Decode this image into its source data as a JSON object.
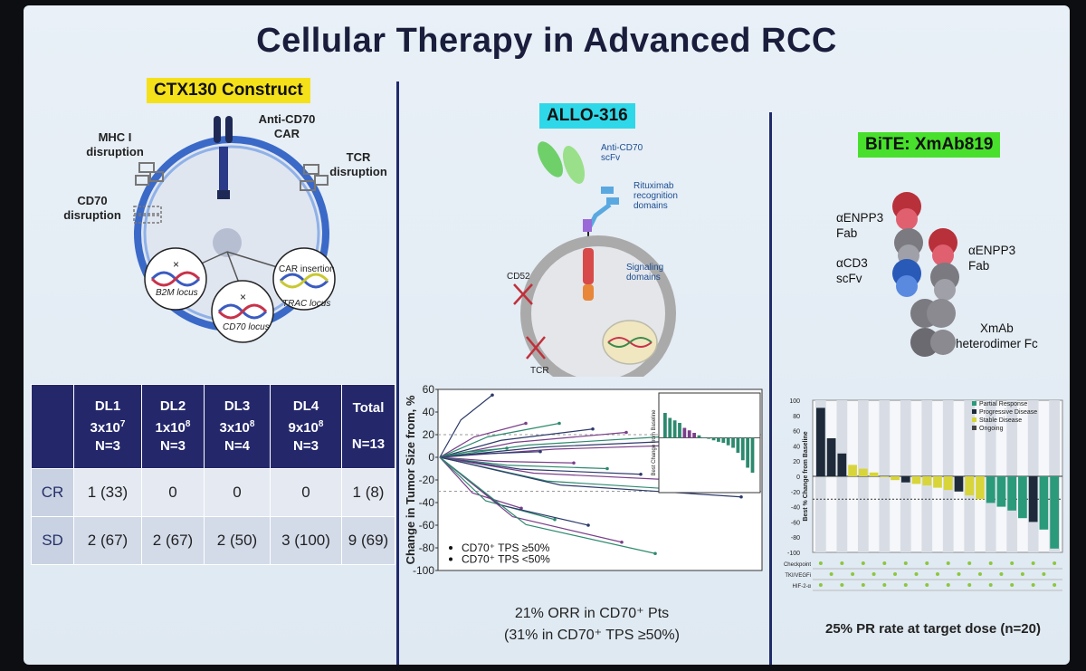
{
  "title": "Cellular Therapy in Advanced RCC",
  "colors": {
    "navy": "#24286b",
    "yellow_label": "#f5e11a",
    "cyan_label": "#2fd8e8",
    "green_label": "#48e02c",
    "bar_dark": "#1e2a3a",
    "bar_teal": "#2a9a7a",
    "bar_yellow": "#d8d53a"
  },
  "ctx130": {
    "label": "CTX130 Construct",
    "anti_cd70_car": "Anti-CD70\nCAR",
    "mhc_disruption": "MHC I\ndisruption",
    "tcr_disruption": "TCR\ndisruption",
    "cd70_disruption": "CD70\ndisruption",
    "b2m_locus": "B2M locus",
    "cd70_locus": "CD70 locus",
    "car_insertion": "CAR insertion",
    "trac_locus": "TRAC locus"
  },
  "table": {
    "headers": [
      {
        "dl": "DL1",
        "dose": "3x10",
        "exp": "7",
        "n": "N=3"
      },
      {
        "dl": "DL2",
        "dose": "1x10",
        "exp": "8",
        "n": "N=3"
      },
      {
        "dl": "DL3",
        "dose": "3x10",
        "exp": "8",
        "n": "N=4"
      },
      {
        "dl": "DL4",
        "dose": "9x10",
        "exp": "8",
        "n": "N=3"
      },
      {
        "dl": "Total",
        "dose": "",
        "exp": "",
        "n": "N=13"
      }
    ],
    "rows": [
      {
        "label": "CR",
        "cells": [
          "1 (33)",
          "0",
          "0",
          "0",
          "1 (8)"
        ]
      },
      {
        "label": "SD",
        "cells": [
          "2 (67)",
          "2 (67)",
          "2 (50)",
          "3 (100)",
          "9 (69)"
        ]
      }
    ]
  },
  "allo316": {
    "label": "ALLO-316",
    "anti_cd70_scfv": "Anti-CD70\nscFv",
    "rituximab": "Rituximab\nrecognition\ndomains",
    "signaling": "Signaling\ndomains",
    "cd52": "CD52",
    "tcr": "TCR",
    "caption_line1": "21% ORR in CD70⁺ Pts",
    "caption_line2": "(31% in CD70⁺ TPS ≥50%)"
  },
  "xmab": {
    "label": "BiTE: XmAb819",
    "enpp3_fab_left": "αENPP3\nFab",
    "cd3_scfv": "αCD3\nscFv",
    "enpp3_fab_right": "αENPP3\nFab",
    "fc": "XmAb\nheterodimer Fc",
    "caption": "25% PR rate at target dose (n=20)"
  },
  "chart_data": [
    {
      "type": "line",
      "ylabel": "Change in Tumor Size from, %",
      "ylim": [
        -100,
        60
      ],
      "yticks": [
        "60",
        "40",
        "20",
        "0",
        "-20",
        "-40",
        "-60",
        "-80",
        "-100"
      ],
      "legend": [
        "CD70⁺ TPS ≥50%",
        "CD70⁺ TPS <50%"
      ],
      "legend_placement": "bottom-left",
      "series_values_end": [
        55,
        30,
        30,
        25,
        22,
        18,
        15,
        12,
        8,
        5,
        -5,
        -10,
        -15,
        -20,
        -30,
        -35,
        -45,
        -55,
        -60,
        -75,
        -85
      ],
      "inset": {
        "type": "bar",
        "ylabel": "Best Change from Baseline",
        "values": [
          50,
          40,
          35,
          30,
          20,
          15,
          10,
          5,
          0,
          -2,
          -5,
          -8,
          -10,
          -15,
          -20,
          -30,
          -45,
          -60,
          -70
        ]
      }
    },
    {
      "type": "bar",
      "ylabel": "Best % Change from Baseline",
      "ylim": [
        -100,
        100
      ],
      "yticks": [
        "100",
        "80",
        "60",
        "40",
        "20",
        "0",
        "-20",
        "-40",
        "-60",
        "-80",
        "-100"
      ],
      "legend": [
        "Partial Response",
        "Progressive Disease",
        "Stable Disease",
        "Ongoing"
      ],
      "legend_placement": "top-right",
      "row_labels": [
        "Checkpoint",
        "TKI/VEGFi",
        "HIF-2-α"
      ],
      "values": [
        90,
        50,
        30,
        15,
        10,
        5,
        0,
        -5,
        -8,
        -10,
        -12,
        -15,
        -18,
        -20,
        -25,
        -30,
        -35,
        -40,
        -45,
        -55,
        -60,
        -70,
        -95
      ],
      "statuses": [
        "PD",
        "PD",
        "PD",
        "SD",
        "SD",
        "SD",
        "SD",
        "SD",
        "PD",
        "SD",
        "SD",
        "SD",
        "SD",
        "PD",
        "SD",
        "SD",
        "PR",
        "PR",
        "PR",
        "PR",
        "PD",
        "PR",
        "PR"
      ]
    }
  ]
}
